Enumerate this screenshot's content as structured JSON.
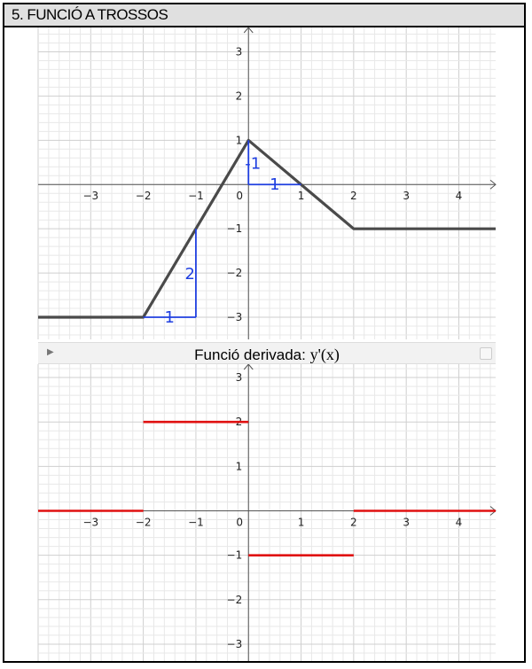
{
  "header": {
    "title": "5. FUNCIÓ A TROSSOS"
  },
  "derivative_panel": {
    "label": "Funció derivada:",
    "formula": "y'(x)",
    "collapse_icon": "triangle-right-icon"
  },
  "colors": {
    "function": "#4a4a4a",
    "derivative": "#e01010",
    "annotation": "#1f3fe0",
    "grid_minor": "#e8e8e8",
    "grid_major": "#cfcfcf",
    "axis": "#555555"
  },
  "chart_data": [
    {
      "type": "line",
      "xlim": [
        -4,
        4.7
      ],
      "ylim": [
        -3.5,
        3.55
      ],
      "x_ticks": [
        -3,
        -2,
        -1,
        0,
        1,
        2,
        3,
        4
      ],
      "y_ticks": [
        -3,
        -2,
        -1,
        1,
        2,
        3
      ],
      "x_tick_labels": [
        "−3",
        "−2",
        "−1",
        "0",
        "1",
        "2",
        "3",
        "4"
      ],
      "y_tick_labels": [
        "−3",
        "−2",
        "−1",
        "1",
        "2",
        "3"
      ],
      "grid": true,
      "series": [
        {
          "x": [
            -4,
            -2,
            0,
            2,
            4.7
          ],
          "y": [
            -3,
            -3,
            1,
            -1,
            -1
          ]
        }
      ],
      "annotations": [
        {
          "text": "1",
          "kind": "run",
          "x": [
            -2,
            -1
          ],
          "y": -3
        },
        {
          "text": "2",
          "kind": "rise",
          "x": -1,
          "y": [
            -3,
            -1
          ]
        },
        {
          "text": "-1",
          "kind": "rise",
          "x": 0,
          "y": [
            0,
            1
          ]
        },
        {
          "text": "1",
          "kind": "run",
          "x": [
            0,
            1
          ],
          "y": 0
        }
      ]
    },
    {
      "type": "line",
      "xlim": [
        -4,
        4.7
      ],
      "ylim": [
        -3.4,
        3.3
      ],
      "x_ticks": [
        -3,
        -2,
        -1,
        0,
        1,
        2,
        3,
        4
      ],
      "y_ticks": [
        -3,
        -2,
        -1,
        1,
        2,
        3
      ],
      "x_tick_labels": [
        "−3",
        "−2",
        "−1",
        "0",
        "1",
        "2",
        "3",
        "4"
      ],
      "y_tick_labels": [
        "−3",
        "−2",
        "−1",
        "1",
        "2",
        "3"
      ],
      "grid": true,
      "series": [
        {
          "x": [
            -4,
            -2
          ],
          "y": [
            0,
            0
          ]
        },
        {
          "x": [
            -2,
            0
          ],
          "y": [
            2,
            2
          ]
        },
        {
          "x": [
            0,
            2
          ],
          "y": [
            -1,
            -1
          ]
        },
        {
          "x": [
            2,
            4.7
          ],
          "y": [
            0,
            0
          ]
        }
      ]
    }
  ]
}
